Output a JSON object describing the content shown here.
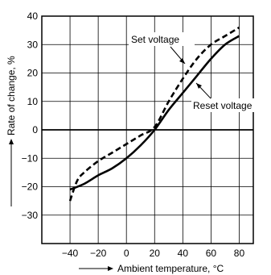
{
  "chart_data": {
    "type": "line",
    "xlabel": "Ambient temperature, °C",
    "ylabel": "Rate of change, %",
    "xlim": [
      -60,
      90
    ],
    "ylim": [
      -40,
      40
    ],
    "x_ticks": [
      -40,
      -20,
      0,
      20,
      40,
      60,
      80
    ],
    "x_tick_labels": [
      "−40",
      "−20",
      "0",
      "20",
      "40",
      "60",
      "80"
    ],
    "y_ticks": [
      -30,
      -20,
      -10,
      0,
      10,
      20,
      30,
      40
    ],
    "y_tick_labels": [
      "−30",
      "−20",
      "−10",
      "0",
      "10",
      "20",
      "30",
      "40"
    ],
    "grid": true,
    "series": [
      {
        "name": "Set voltage",
        "style": "dashed",
        "x": [
          -40,
          -35,
          -30,
          -20,
          -10,
          0,
          10,
          20,
          30,
          40,
          50,
          60,
          70,
          80
        ],
        "y": [
          -25,
          -18,
          -15,
          -11,
          -8,
          -5,
          -2,
          1,
          10,
          18,
          25,
          30,
          33,
          36
        ]
      },
      {
        "name": "Reset voltage",
        "style": "solid",
        "x": [
          -40,
          -30,
          -20,
          -10,
          0,
          10,
          20,
          30,
          40,
          50,
          60,
          70,
          80
        ],
        "y": [
          -21,
          -19,
          -16,
          -13.5,
          -10,
          -5.5,
          0,
          7,
          13,
          19,
          25,
          30,
          33
        ]
      }
    ],
    "annotations": [
      {
        "text": "Set voltage"
      },
      {
        "text": "Reset voltage"
      }
    ]
  }
}
